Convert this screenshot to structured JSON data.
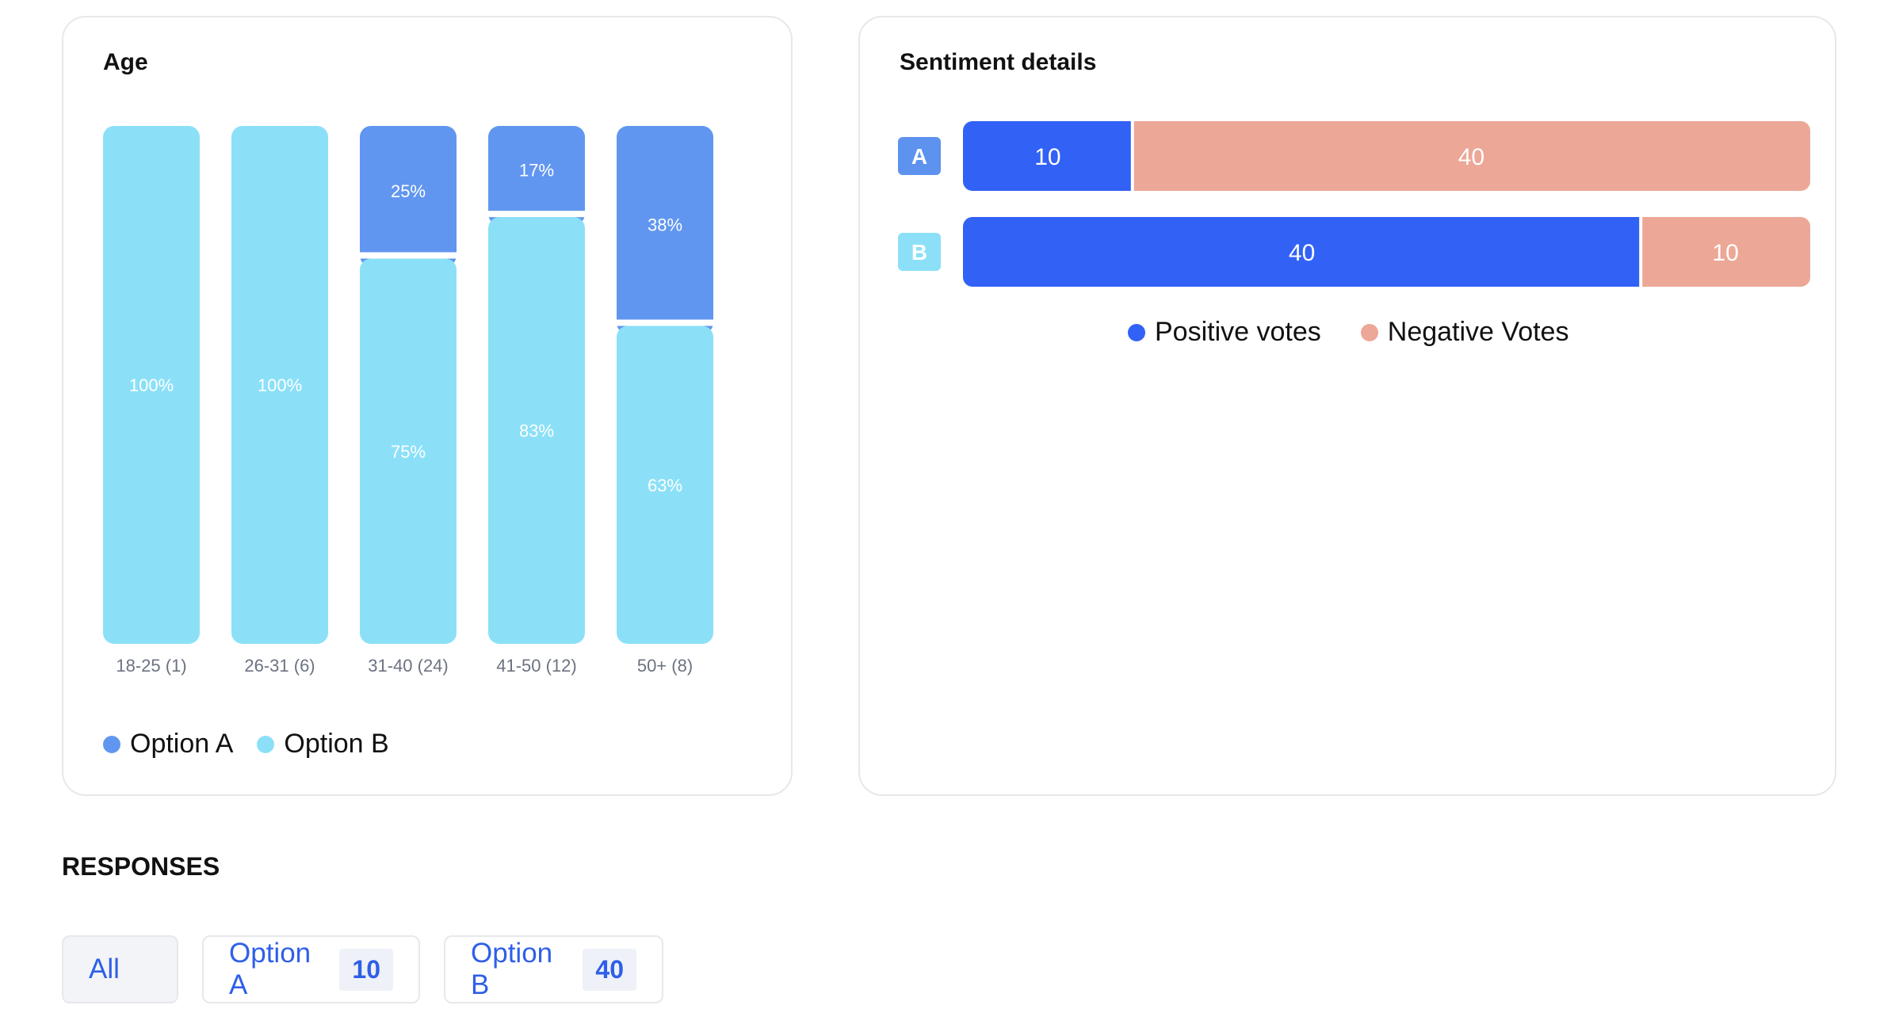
{
  "colors": {
    "option_a": "#6196f0",
    "option_b": "#8be0f8",
    "positive": "#3261f5",
    "negative": "#eca797",
    "label_a_bg": "#5d93ee",
    "label_b_bg": "#8be0f8"
  },
  "age_card": {
    "title": "Age",
    "legend": [
      {
        "label": "Option A",
        "color": "#6196f0"
      },
      {
        "label": "Option B",
        "color": "#8be0f8"
      }
    ]
  },
  "sentiment_card": {
    "title": "Sentiment details",
    "legend": [
      {
        "label": "Positive votes",
        "color": "#3261f5"
      },
      {
        "label": "Negative Votes",
        "color": "#eca797"
      }
    ]
  },
  "responses": {
    "title": "RESPONSES",
    "filters": [
      {
        "label": "All"
      },
      {
        "label": "Option A",
        "count": "10"
      },
      {
        "label": "Option B",
        "count": "40"
      }
    ]
  },
  "chart_data": [
    {
      "type": "bar",
      "stacked": true,
      "title": "Age",
      "categories": [
        "18-25 (1)",
        "26-31 (6)",
        "31-40 (24)",
        "41-50 (12)",
        "50+ (8)"
      ],
      "series": [
        {
          "name": "Option A",
          "values": [
            0,
            0,
            25,
            17,
            38
          ],
          "labels": [
            "",
            "",
            "25%",
            "17%",
            "38%"
          ]
        },
        {
          "name": "Option B",
          "values": [
            100,
            100,
            75,
            83,
            63
          ],
          "labels": [
            "100%",
            "100%",
            "75%",
            "83%",
            "63%"
          ]
        }
      ],
      "ylim": [
        0,
        100
      ],
      "legend": "bottom-left"
    },
    {
      "type": "bar",
      "orientation": "horizontal",
      "stacked": true,
      "title": "Sentiment details",
      "categories": [
        "A",
        "B"
      ],
      "series": [
        {
          "name": "Positive votes",
          "values": [
            10,
            40
          ]
        },
        {
          "name": "Negative Votes",
          "values": [
            40,
            10
          ]
        }
      ],
      "legend": "bottom-center"
    }
  ]
}
